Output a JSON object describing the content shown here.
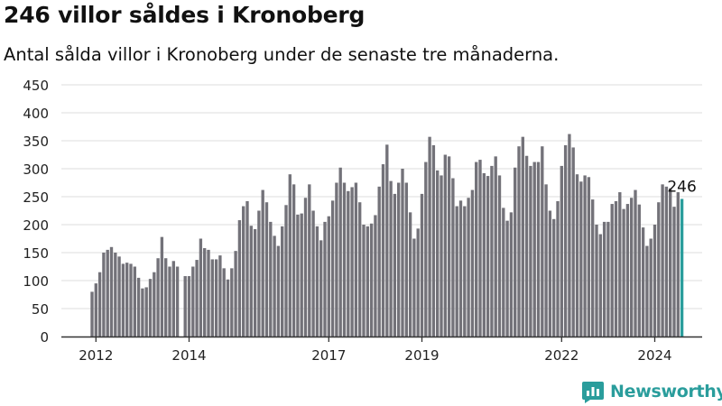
{
  "title": "246 villor såldes i Kronoberg",
  "subtitle": "Antal sålda villor i Kronoberg under de senaste tre månaderna.",
  "brand": "Newsworthy",
  "colors": {
    "bar": "#737279",
    "highlight": "#2a9d9c",
    "axis": "#333333",
    "grid": "#dddddd"
  },
  "chart_data": {
    "type": "bar",
    "title": "246 villor såldes i Kronoberg",
    "subtitle": "Antal sålda villor i Kronoberg under de senaste tre månaderna.",
    "xlabel": "",
    "ylabel": "",
    "ylim": [
      0,
      450
    ],
    "yticks": [
      0,
      50,
      100,
      150,
      200,
      250,
      300,
      350,
      400,
      450
    ],
    "grid": true,
    "x_start": "2011-12",
    "xticks": [
      {
        "label": "2012",
        "date": "2012-01"
      },
      {
        "label": "2014",
        "date": "2014-01"
      },
      {
        "label": "2017",
        "date": "2017-01"
      },
      {
        "label": "2019",
        "date": "2019-01"
      },
      {
        "label": "2022",
        "date": "2022-01"
      },
      {
        "label": "2024",
        "date": "2024-01"
      }
    ],
    "values": [
      80,
      95,
      115,
      150,
      155,
      160,
      150,
      143,
      130,
      132,
      130,
      125,
      105,
      86,
      88,
      103,
      115,
      140,
      178,
      140,
      125,
      135,
      125,
      null,
      108,
      108,
      125,
      137,
      175,
      158,
      155,
      138,
      138,
      145,
      122,
      102,
      122,
      153,
      208,
      233,
      242,
      198,
      192,
      225,
      262,
      240,
      205,
      180,
      162,
      197,
      235,
      290,
      272,
      218,
      220,
      248,
      272,
      225,
      197,
      172,
      205,
      215,
      243,
      275,
      302,
      275,
      260,
      267,
      275,
      240,
      200,
      197,
      202,
      217,
      268,
      308,
      343,
      278,
      255,
      275,
      300,
      275,
      222,
      175,
      193,
      255,
      312,
      357,
      342,
      297,
      288,
      325,
      322,
      283,
      233,
      243,
      233,
      248,
      262,
      312,
      316,
      292,
      287,
      305,
      322,
      288,
      230,
      207,
      222,
      302,
      340,
      357,
      323,
      305,
      312,
      312,
      340,
      272,
      225,
      210,
      242,
      305,
      342,
      362,
      338,
      290,
      277,
      288,
      285,
      245,
      200,
      183,
      205,
      205,
      237,
      242,
      258,
      228,
      237,
      248,
      262,
      236,
      195,
      162,
      175,
      200,
      240,
      272,
      268,
      265,
      232,
      258,
      246
    ],
    "highlight_last": true,
    "annotation": {
      "text": "246",
      "target": "last"
    }
  }
}
